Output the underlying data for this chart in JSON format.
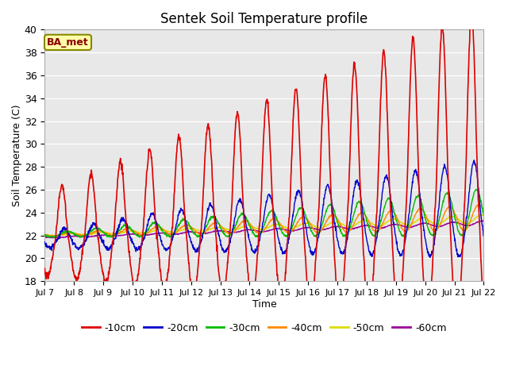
{
  "title": "Sentek Soil Temperature profile",
  "xlabel": "Time",
  "ylabel": "Soil Temperature (C)",
  "annotation": "BA_met",
  "ylim": [
    18,
    40
  ],
  "xlim": [
    0,
    15.0
  ],
  "x_tick_labels": [
    "Jul 7",
    "Jul 8",
    "Jul 9",
    "Jul 10",
    "Jul 11",
    "Jul 12",
    "Jul 13",
    "Jul 14",
    "Jul 15",
    "Jul 16",
    "Jul 17",
    "Jul 18",
    "Jul 19",
    "Jul 20",
    "Jul 21",
    "Jul 22"
  ],
  "colors": {
    "-10cm": "#dd0000",
    "-20cm": "#0000cc",
    "-30cm": "#00bb00",
    "-40cm": "#ff8800",
    "-50cm": "#dddd00",
    "-60cm": "#990099"
  },
  "plot_bg_color": "#e8e8e8",
  "fig_bg_color": "#ffffff"
}
